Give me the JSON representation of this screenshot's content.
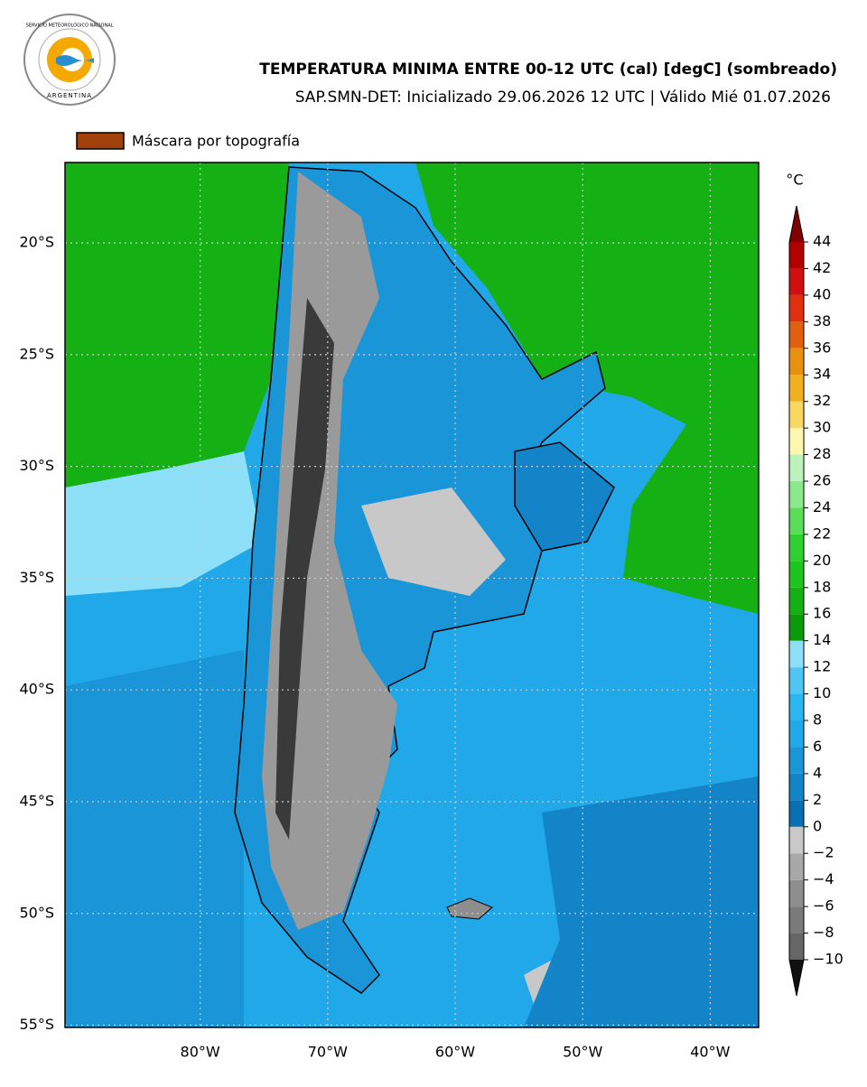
{
  "logo": {
    "top": "SERVICIO METEOROLÓGICO NACIONAL",
    "bottom": "ARGENTINA"
  },
  "header": {
    "title": "TEMPERATURA MINIMA ENTRE 00-12 UTC (cal) [degC] (sombreado)",
    "subtitle": "SAP.SMN-DET: Inicializado 29.06.2026 12 UTC | Válido Mié 01.07.2026"
  },
  "legend": {
    "label": "Máscara por topografía",
    "color": "#a0410a"
  },
  "map": {
    "xlim": [
      -90.6,
      -36.2
    ],
    "ylim": [
      -55.1,
      -16.4
    ],
    "xticks": [
      {
        "value": -80,
        "label": "80°W"
      },
      {
        "value": -70,
        "label": "70°W"
      },
      {
        "value": -60,
        "label": "60°W"
      },
      {
        "value": -50,
        "label": "50°W"
      },
      {
        "value": -40,
        "label": "40°W"
      }
    ],
    "yticks": [
      {
        "value": -20,
        "label": "20°S"
      },
      {
        "value": -25,
        "label": "25°S"
      },
      {
        "value": -30,
        "label": "30°S"
      },
      {
        "value": -35,
        "label": "35°S"
      },
      {
        "value": -40,
        "label": "40°S"
      },
      {
        "value": -45,
        "label": "45°S"
      },
      {
        "value": -50,
        "label": "50°S"
      },
      {
        "value": -55,
        "label": "55°S"
      }
    ],
    "grid": true
  },
  "colorbar": {
    "unit": "°C",
    "ticks": [
      {
        "value": -10,
        "label": "−10"
      },
      {
        "value": -8,
        "label": "−8"
      },
      {
        "value": -6,
        "label": "−6"
      },
      {
        "value": -4,
        "label": "−4"
      },
      {
        "value": -2,
        "label": "−2"
      },
      0,
      2,
      4,
      6,
      8,
      10,
      12,
      14,
      16,
      18,
      20,
      22,
      24,
      26,
      28,
      30,
      32,
      34,
      36,
      38,
      40,
      42,
      44
    ],
    "colors": [
      "#666666",
      "#7a7a7a",
      "#8e8e8e",
      "#a8a8a8",
      "#c8c8c8",
      "#0a6fb0",
      "#1484c8",
      "#1a96d8",
      "#20a8e8",
      "#2bb6f0",
      "#50c4f2",
      "#8ee0f8",
      "#0a9a0a",
      "#14b014",
      "#1ec41e",
      "#30d030",
      "#5ade5a",
      "#8ce88c",
      "#bdf2bd",
      "#fff6b0",
      "#f8d860",
      "#f0b020",
      "#e89010",
      "#e06010",
      "#e03010",
      "#d01010",
      "#b00000"
    ],
    "under": "#111111",
    "over": "#800000"
  }
}
